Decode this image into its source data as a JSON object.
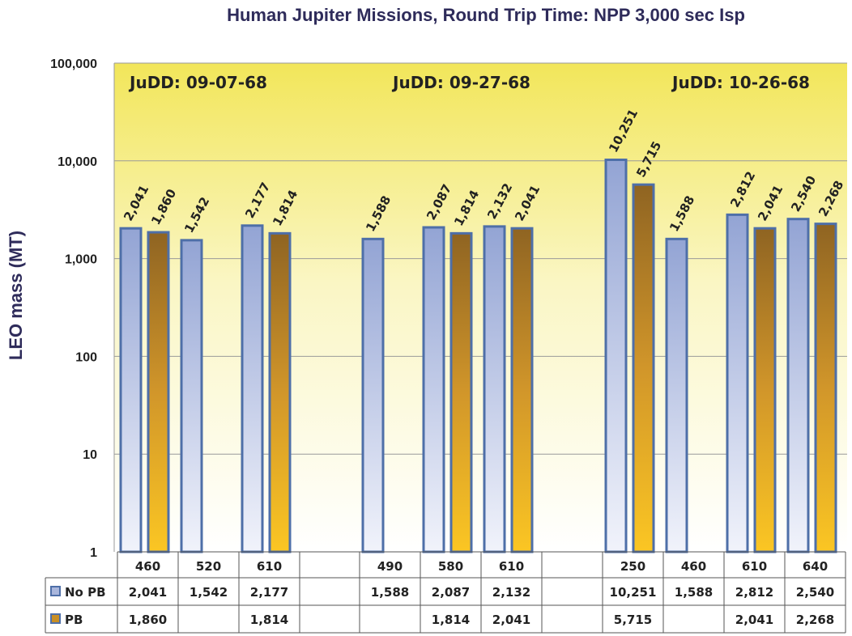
{
  "title": "Human Jupiter Missions, Round Trip Time: NPP 3,000 sec Isp",
  "chart_data": {
    "type": "bar",
    "title": "Human Jupiter Missions, Round Trip Time: NPP 3,000 sec Isp",
    "xlabel": "",
    "ylabel": "LEO mass (MT)",
    "yscale": "log",
    "ylim": [
      1,
      100000
    ],
    "ytick_labels": [
      "1",
      "10",
      "100",
      "1,000",
      "10,000",
      "100,000"
    ],
    "grid": true,
    "groups": [
      {
        "label": "JuDD: 09-07-68",
        "categories": [
          "460",
          "520",
          "610",
          ""
        ]
      },
      {
        "label": "JuDD: 09-27-68",
        "categories": [
          "490",
          "580",
          "610",
          ""
        ]
      },
      {
        "label": "JuDD: 10-26-68",
        "categories": [
          "250",
          "460",
          "610",
          "640"
        ]
      }
    ],
    "categories": [
      "460",
      "520",
      "610",
      "",
      "490",
      "580",
      "610",
      "",
      "250",
      "460",
      "610",
      "640"
    ],
    "series": [
      {
        "name": "No PB",
        "color": "#a9b6dc",
        "values": [
          2041,
          1542,
          2177,
          null,
          1588,
          2087,
          2132,
          null,
          10251,
          1588,
          2812,
          2540
        ],
        "labels": [
          "2,041",
          "1,542",
          "2,177",
          "",
          "1,588",
          "2,087",
          "2,132",
          "",
          "10,251",
          "1,588",
          "2,812",
          "2,540"
        ]
      },
      {
        "name": "PB",
        "color": "#f4b820",
        "values": [
          1860,
          null,
          1814,
          null,
          null,
          1814,
          2041,
          null,
          5715,
          null,
          2041,
          2268
        ],
        "labels": [
          "1,860",
          "",
          "1,814",
          "",
          "",
          "1,814",
          "2,041",
          "",
          "5,715",
          "",
          "2,041",
          "2,268"
        ]
      }
    ],
    "legend": "table"
  },
  "colors": {
    "plot_bg_top": "#f2e65c",
    "plot_bg_bottom": "#ffffff",
    "no_pb_fill": "#a9b6dc",
    "pb_fill": "#f4b820",
    "bar_border": "#4e6fa8",
    "title": "#2e2b5a"
  }
}
